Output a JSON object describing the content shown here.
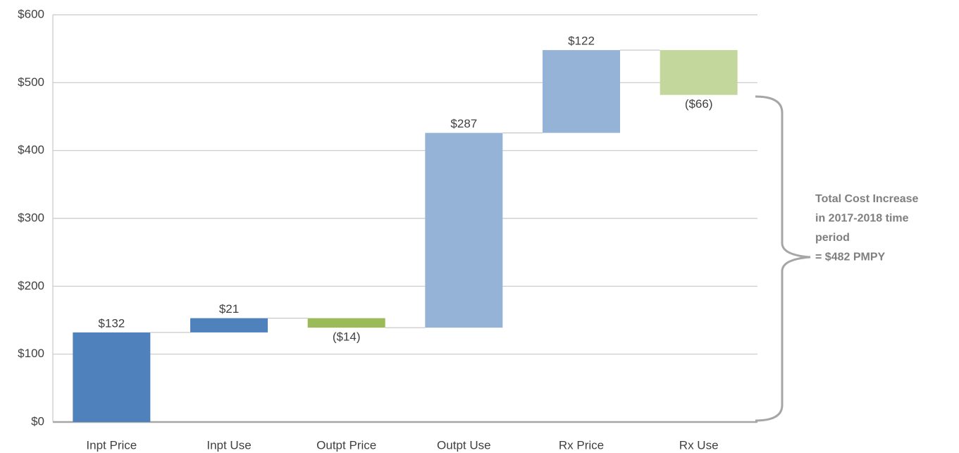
{
  "chart_data": {
    "type": "waterfall",
    "categories": [
      "Inpt Price",
      "Inpt Use",
      "Outpt Price",
      "Outpt Use",
      "Rx Price",
      "Rx Use"
    ],
    "values": [
      132,
      21,
      -14,
      287,
      122,
      -66
    ],
    "value_labels": [
      "$132",
      "$21",
      "($14)",
      "$287",
      "$122",
      "($66)"
    ],
    "colors": [
      "#4f81bd",
      "#4f81bd",
      "#9bbb59",
      "#95b3d7",
      "#95b3d7",
      "#c3d69b"
    ],
    "ylim": [
      0,
      600
    ],
    "yticks": [
      {
        "value": 0,
        "label": "$0"
      },
      {
        "value": 100,
        "label": "$100"
      },
      {
        "value": 200,
        "label": "$200"
      },
      {
        "value": 300,
        "label": "$300"
      },
      {
        "value": 400,
        "label": "$400"
      },
      {
        "value": 500,
        "label": "$500"
      },
      {
        "value": 600,
        "label": "$600"
      }
    ],
    "grid": true,
    "annotation": [
      "Total Cost Increase",
      "in 2017-2018 time",
      "period",
      "= $482 PMPY"
    ]
  }
}
